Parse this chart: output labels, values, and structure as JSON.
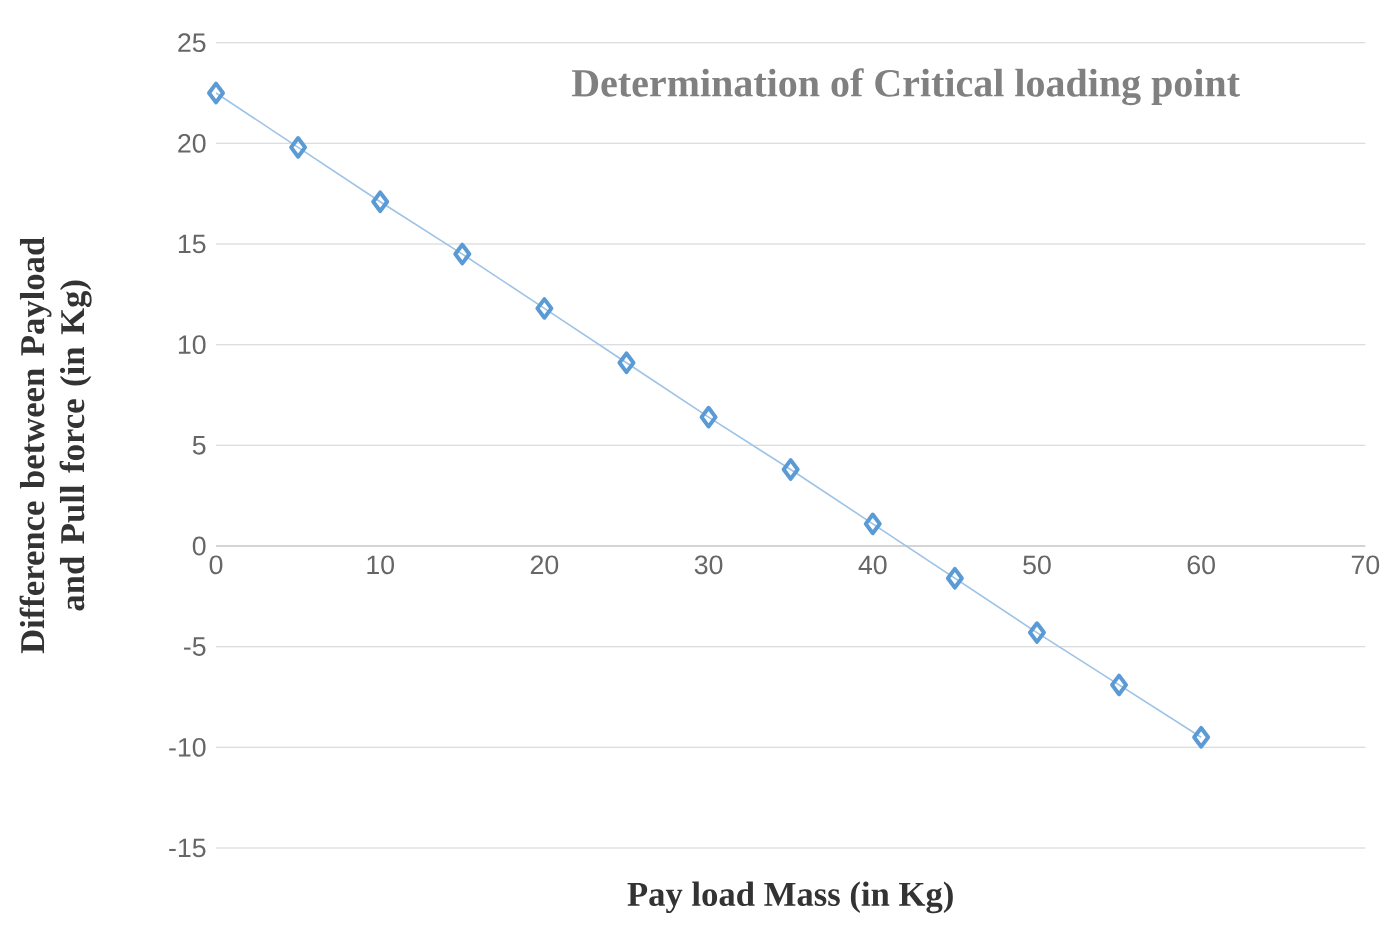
{
  "chart_data": {
    "type": "line",
    "title": "Determination of Critical loading point",
    "xlabel": "Pay load Mass (in Kg)",
    "ylabel": "Difference between Payload and Pull force (in Kg)",
    "x": [
      0,
      5,
      10,
      15,
      20,
      25,
      30,
      35,
      40,
      45,
      50,
      55,
      60
    ],
    "series": [
      {
        "color": "#5b9bd5",
        "values": [
          22.5,
          19.8,
          17.1,
          14.5,
          11.8,
          9.1,
          6.4,
          3.8,
          1.1,
          -1.6,
          -4.3,
          -6.9,
          -9.5
        ]
      }
    ],
    "xlim": [
      0,
      70
    ],
    "xticks": [
      0,
      10,
      20,
      30,
      40,
      50,
      60,
      70
    ],
    "ylim": [
      -15,
      25
    ],
    "yticks": [
      -15,
      -10,
      -5,
      0,
      5,
      10,
      15,
      20,
      25
    ],
    "grid": "y",
    "marker": "diamond",
    "line_style": "solid"
  }
}
